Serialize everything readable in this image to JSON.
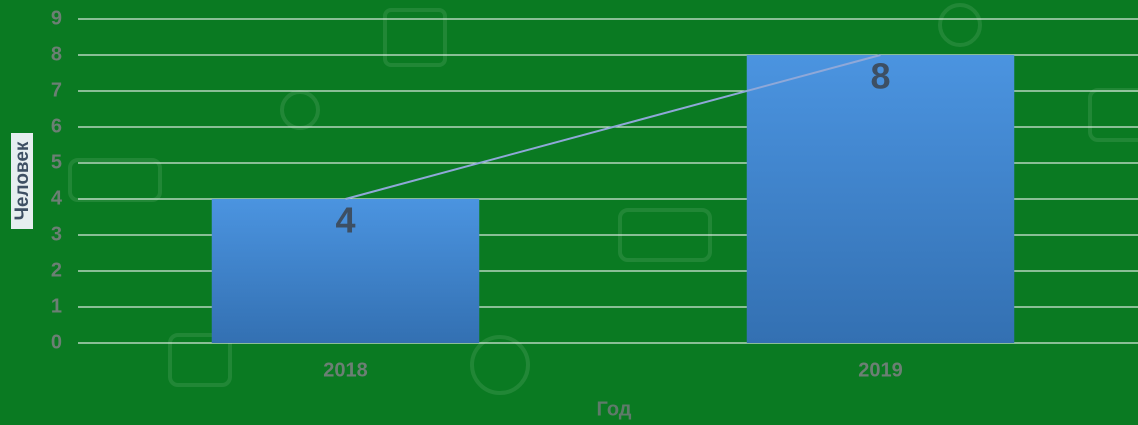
{
  "chart_data": {
    "type": "bar",
    "categories": [
      "2018",
      "2019"
    ],
    "values": [
      4,
      8
    ],
    "color": "#4a8fd8",
    "line": true,
    "line_color": "#8fa8d8",
    "ylim": [
      0,
      9
    ],
    "yticks": [
      0,
      1,
      2,
      3,
      4,
      5,
      6,
      7,
      8,
      9
    ],
    "grid": true,
    "xlabel": "Год",
    "ylabel": "Человек"
  }
}
